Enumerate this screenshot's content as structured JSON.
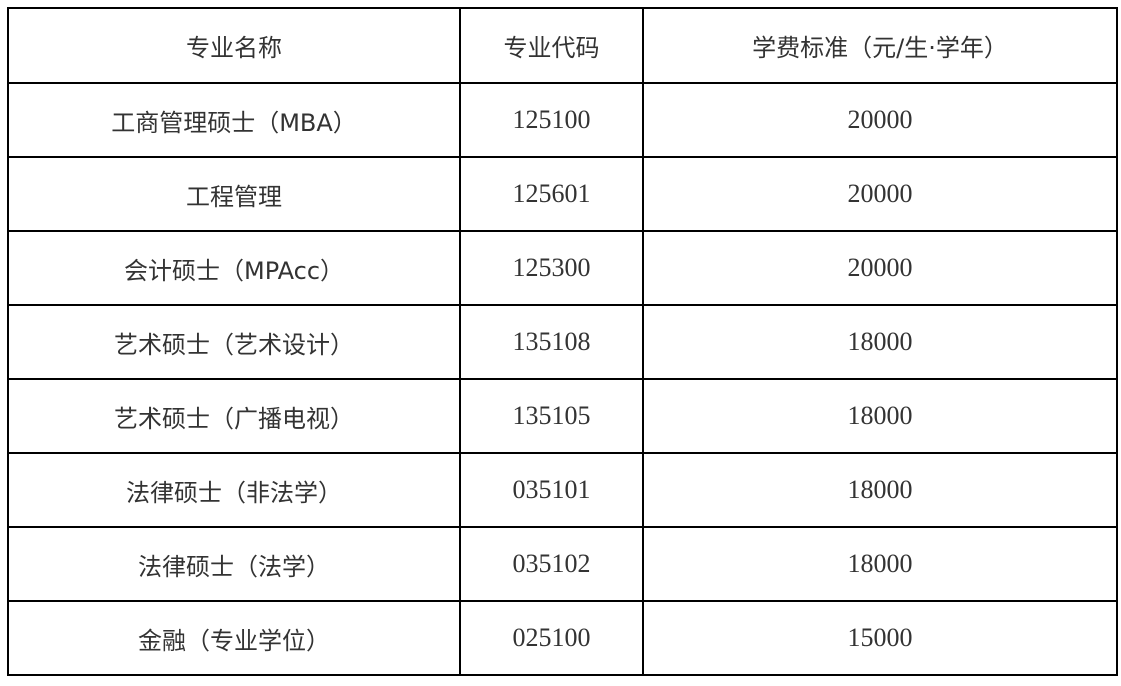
{
  "table": {
    "headers": [
      "专业名称",
      "专业代码",
      "学费标准（元/生·学年）"
    ],
    "rows": [
      [
        "工商管理硕士（MBA）",
        "125100",
        "20000"
      ],
      [
        "工程管理",
        "125601",
        "20000"
      ],
      [
        "会计硕士（MPAcc）",
        "125300",
        "20000"
      ],
      [
        "艺术硕士（艺术设计）",
        "135108",
        "18000"
      ],
      [
        "艺术硕士（广播电视）",
        "135105",
        "18000"
      ],
      [
        "法律硕士（非法学）",
        "035101",
        "18000"
      ],
      [
        "法律硕士（法学）",
        "035102",
        "18000"
      ],
      [
        "金融（专业学位）",
        "025100",
        "15000"
      ]
    ]
  }
}
